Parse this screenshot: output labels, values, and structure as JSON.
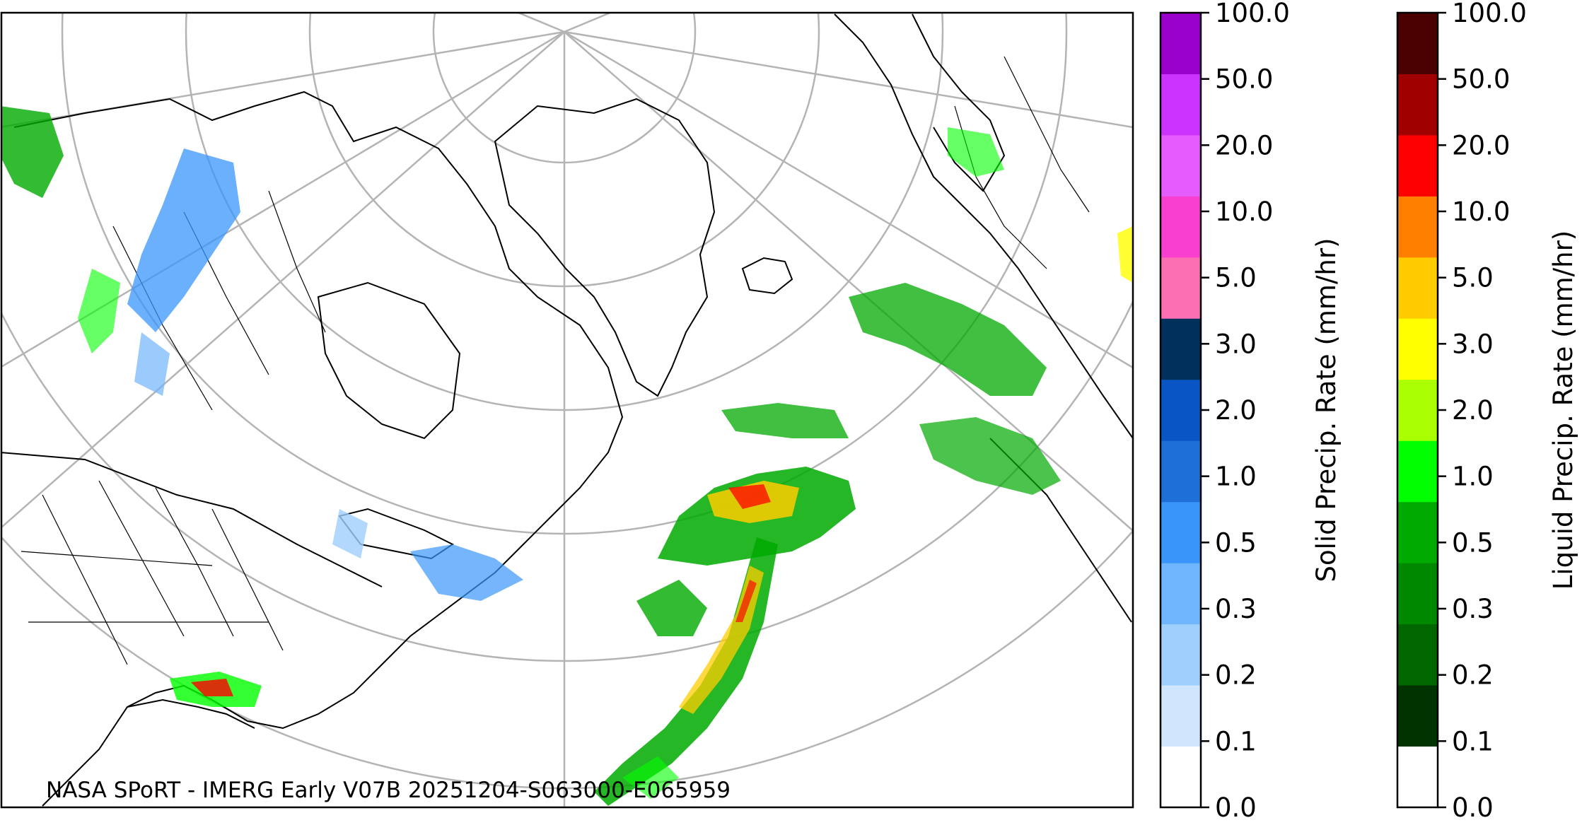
{
  "map": {
    "credit": "NASA SPoRT - IMERG Early V07B 20251204-S063000-E065959",
    "projection": "polar stereographic",
    "graticule": true,
    "colors": {
      "frame": "#000000",
      "coastline": "#000000",
      "graticule": "#b4b4b4",
      "background": "#ffffff"
    }
  },
  "colorbars": [
    {
      "id": "solid",
      "label": "Solid Precip. Rate (mm/hr)",
      "ticks": [
        "0.0",
        "0.1",
        "0.2",
        "0.3",
        "0.5",
        "1.0",
        "2.0",
        "3.0",
        "5.0",
        "10.0",
        "20.0",
        "50.0",
        "100.0"
      ],
      "colors": [
        "#ffffff",
        "#cfe6fd",
        "#9fcffd",
        "#6fb5fb",
        "#3a95fb",
        "#1f6fd9",
        "#0a55c6",
        "#00305c",
        "#fd6fb3",
        "#f93fcf",
        "#e65bfb",
        "#cc33ff",
        "#9900cc"
      ]
    },
    {
      "id": "liquid",
      "label": "Liquid Precip. Rate (mm/hr)",
      "ticks": [
        "0.0",
        "0.1",
        "0.2",
        "0.3",
        "0.5",
        "1.0",
        "2.0",
        "3.0",
        "5.0",
        "10.0",
        "20.0",
        "50.0",
        "100.0"
      ],
      "colors": [
        "#ffffff",
        "#003300",
        "#006600",
        "#008800",
        "#00aa00",
        "#00ff00",
        "#aaff00",
        "#ffff00",
        "#ffcc00",
        "#ff8000",
        "#ff0000",
        "#a00000",
        "#4a0000"
      ]
    }
  ]
}
